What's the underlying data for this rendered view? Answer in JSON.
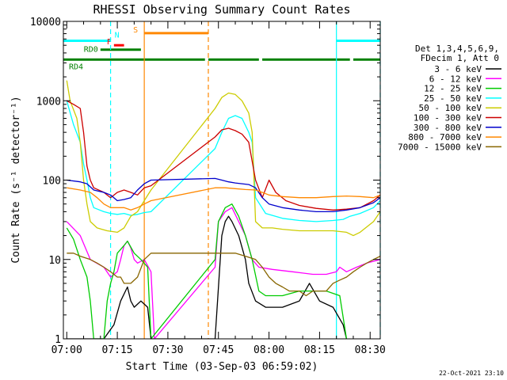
{
  "chart_data": {
    "type": "line",
    "title": "RHESSI Observing Summary Count Rates",
    "xlabel": "Start Time (03-Sep-03 06:59:02)",
    "ylabel": "Count Rate (s⁻¹ detector⁻¹)",
    "yscale": "log",
    "ylim": [
      1,
      10000
    ],
    "xlim_min": [
      0,
      94
    ],
    "x_ticks": [
      {
        "min": 1,
        "label": "07:00"
      },
      {
        "min": 16,
        "label": "07:15"
      },
      {
        "min": 31,
        "label": "07:30"
      },
      {
        "min": 46,
        "label": "07:45"
      },
      {
        "min": 61,
        "label": "08:00"
      },
      {
        "min": 76,
        "label": "08:15"
      },
      {
        "min": 91,
        "label": "08:30"
      }
    ],
    "y_ticks": [
      {
        "v": 1,
        "label": "1"
      },
      {
        "v": 10,
        "label": "10"
      },
      {
        "v": 100,
        "label": "100"
      },
      {
        "v": 1000,
        "label": "1000"
      },
      {
        "v": 10000,
        "label": "10000"
      }
    ],
    "legend_header": [
      "Det 1,3,4,5,6,9,",
      "FDecim 1, Att 0"
    ],
    "series": [
      {
        "name": "3 - 6 keV",
        "color": "#000000",
        "points": [
          [
            1,
            1
          ],
          [
            12,
            1
          ],
          [
            15,
            1.5
          ],
          [
            17,
            3
          ],
          [
            19,
            4.5
          ],
          [
            20,
            3
          ],
          [
            21,
            2.5
          ],
          [
            23,
            3
          ],
          [
            25,
            2.5
          ],
          [
            26,
            1
          ],
          [
            45,
            1
          ],
          [
            47,
            20
          ],
          [
            48,
            30
          ],
          [
            49,
            35
          ],
          [
            50,
            30
          ],
          [
            52,
            20
          ],
          [
            54,
            10
          ],
          [
            55,
            5
          ],
          [
            57,
            3
          ],
          [
            60,
            2.5
          ],
          [
            65,
            2.5
          ],
          [
            70,
            3
          ],
          [
            73,
            5
          ],
          [
            76,
            3
          ],
          [
            80,
            2.5
          ],
          [
            83,
            1.5
          ],
          [
            84,
            1
          ]
        ]
      },
      {
        "name": "6 - 12 keV",
        "color": "#ff00ff",
        "points": [
          [
            1,
            30
          ],
          [
            5,
            20
          ],
          [
            8,
            10
          ],
          [
            12,
            8
          ],
          [
            14,
            6
          ],
          [
            16,
            7
          ],
          [
            17,
            10
          ],
          [
            18,
            15
          ],
          [
            19,
            17
          ],
          [
            20,
            14
          ],
          [
            21,
            10
          ],
          [
            22,
            9
          ],
          [
            24,
            10
          ],
          [
            26,
            7
          ],
          [
            27,
            1
          ],
          [
            45,
            8
          ],
          [
            46,
            30
          ],
          [
            48,
            40
          ],
          [
            50,
            45
          ],
          [
            52,
            30
          ],
          [
            54,
            20
          ],
          [
            56,
            10
          ],
          [
            58,
            8
          ],
          [
            62,
            7.5
          ],
          [
            68,
            7
          ],
          [
            74,
            6.5
          ],
          [
            78,
            6.5
          ],
          [
            81,
            7
          ],
          [
            82,
            8
          ],
          [
            84,
            7
          ],
          [
            87,
            8
          ],
          [
            90,
            9
          ],
          [
            94,
            10
          ]
        ]
      },
      {
        "name": "12 - 25 keV",
        "color": "#00cc00",
        "points": [
          [
            1,
            25
          ],
          [
            3,
            18
          ],
          [
            5,
            10
          ],
          [
            7,
            6
          ],
          [
            8,
            3
          ],
          [
            9,
            1
          ],
          [
            12,
            1
          ],
          [
            13,
            3
          ],
          [
            14,
            5
          ],
          [
            15,
            7
          ],
          [
            16,
            12
          ],
          [
            18,
            15
          ],
          [
            19,
            17
          ],
          [
            21,
            12
          ],
          [
            23,
            10
          ],
          [
            25,
            8
          ],
          [
            26,
            1
          ],
          [
            45,
            10
          ],
          [
            46,
            30
          ],
          [
            48,
            45
          ],
          [
            50,
            50
          ],
          [
            52,
            35
          ],
          [
            54,
            20
          ],
          [
            56,
            10
          ],
          [
            58,
            4
          ],
          [
            60,
            3.5
          ],
          [
            65,
            3.5
          ],
          [
            70,
            4
          ],
          [
            74,
            4
          ],
          [
            78,
            4
          ],
          [
            82,
            3.5
          ],
          [
            84,
            1
          ]
        ]
      },
      {
        "name": "25 - 50 keV",
        "color": "#00ffff",
        "points": [
          [
            1,
            1000
          ],
          [
            3,
            500
          ],
          [
            5,
            300
          ],
          [
            6,
            160
          ],
          [
            7,
            100
          ],
          [
            8,
            60
          ],
          [
            9,
            45
          ],
          [
            12,
            40
          ],
          [
            14,
            38
          ],
          [
            16,
            37
          ],
          [
            18,
            38
          ],
          [
            20,
            36
          ],
          [
            22,
            37
          ],
          [
            24,
            39
          ],
          [
            26,
            40
          ],
          [
            45,
            250
          ],
          [
            47,
            400
          ],
          [
            49,
            600
          ],
          [
            51,
            650
          ],
          [
            53,
            600
          ],
          [
            55,
            400
          ],
          [
            56,
            300
          ],
          [
            57,
            60
          ],
          [
            60,
            38
          ],
          [
            65,
            33
          ],
          [
            70,
            31
          ],
          [
            75,
            30
          ],
          [
            80,
            31
          ],
          [
            83,
            32
          ],
          [
            85,
            35
          ],
          [
            88,
            38
          ],
          [
            92,
            45
          ],
          [
            94,
            55
          ]
        ]
      },
      {
        "name": "50 - 100 keV",
        "color": "#cccc00",
        "points": [
          [
            1,
            1800
          ],
          [
            2,
            1000
          ],
          [
            4,
            600
          ],
          [
            5,
            300
          ],
          [
            6,
            100
          ],
          [
            7,
            50
          ],
          [
            8,
            30
          ],
          [
            10,
            25
          ],
          [
            13,
            23
          ],
          [
            16,
            22
          ],
          [
            18,
            25
          ],
          [
            20,
            35
          ],
          [
            22,
            40
          ],
          [
            24,
            55
          ],
          [
            26,
            75
          ],
          [
            45,
            800
          ],
          [
            47,
            1100
          ],
          [
            49,
            1250
          ],
          [
            51,
            1200
          ],
          [
            53,
            1000
          ],
          [
            55,
            700
          ],
          [
            56,
            400
          ],
          [
            57,
            30
          ],
          [
            59,
            25
          ],
          [
            62,
            25
          ],
          [
            65,
            24
          ],
          [
            70,
            23
          ],
          [
            75,
            23
          ],
          [
            80,
            23
          ],
          [
            84,
            22
          ],
          [
            86,
            20
          ],
          [
            88,
            22
          ],
          [
            92,
            30
          ],
          [
            94,
            40
          ]
        ]
      },
      {
        "name": "100 - 300 keV",
        "color": "#cc0000",
        "points": [
          [
            1,
            1000
          ],
          [
            3,
            900
          ],
          [
            5,
            800
          ],
          [
            6,
            400
          ],
          [
            7,
            150
          ],
          [
            8,
            100
          ],
          [
            9,
            80
          ],
          [
            12,
            70
          ],
          [
            14,
            60
          ],
          [
            16,
            70
          ],
          [
            18,
            75
          ],
          [
            20,
            70
          ],
          [
            22,
            65
          ],
          [
            24,
            80
          ],
          [
            26,
            85
          ],
          [
            45,
            350
          ],
          [
            47,
            430
          ],
          [
            49,
            450
          ],
          [
            51,
            420
          ],
          [
            53,
            380
          ],
          [
            55,
            300
          ],
          [
            57,
            100
          ],
          [
            59,
            60
          ],
          [
            61,
            100
          ],
          [
            63,
            70
          ],
          [
            66,
            55
          ],
          [
            70,
            48
          ],
          [
            75,
            44
          ],
          [
            80,
            42
          ],
          [
            84,
            43
          ],
          [
            88,
            45
          ],
          [
            92,
            55
          ],
          [
            94,
            65
          ]
        ]
      },
      {
        "name": "300 - 800 keV",
        "color": "#0000cc",
        "points": [
          [
            1,
            100
          ],
          [
            5,
            95
          ],
          [
            7,
            90
          ],
          [
            9,
            75
          ],
          [
            12,
            70
          ],
          [
            14,
            65
          ],
          [
            16,
            55
          ],
          [
            18,
            57
          ],
          [
            20,
            60
          ],
          [
            22,
            75
          ],
          [
            24,
            90
          ],
          [
            26,
            100
          ],
          [
            45,
            105
          ],
          [
            47,
            100
          ],
          [
            49,
            95
          ],
          [
            51,
            92
          ],
          [
            53,
            90
          ],
          [
            55,
            88
          ],
          [
            57,
            80
          ],
          [
            59,
            60
          ],
          [
            61,
            50
          ],
          [
            65,
            45
          ],
          [
            70,
            42
          ],
          [
            75,
            40
          ],
          [
            80,
            40
          ],
          [
            84,
            42
          ],
          [
            88,
            45
          ],
          [
            92,
            52
          ],
          [
            94,
            60
          ]
        ]
      },
      {
        "name": "800 - 7000 keV",
        "color": "#ff8800",
        "points": [
          [
            1,
            80
          ],
          [
            5,
            75
          ],
          [
            8,
            70
          ],
          [
            10,
            60
          ],
          [
            12,
            50
          ],
          [
            14,
            45
          ],
          [
            16,
            45
          ],
          [
            18,
            45
          ],
          [
            20,
            42
          ],
          [
            22,
            45
          ],
          [
            24,
            50
          ],
          [
            26,
            55
          ],
          [
            45,
            80
          ],
          [
            48,
            80
          ],
          [
            51,
            78
          ],
          [
            54,
            76
          ],
          [
            57,
            75
          ],
          [
            59,
            70
          ],
          [
            61,
            65
          ],
          [
            65,
            62
          ],
          [
            70,
            60
          ],
          [
            75,
            60
          ],
          [
            80,
            62
          ],
          [
            84,
            63
          ],
          [
            88,
            62
          ],
          [
            92,
            60
          ],
          [
            94,
            65
          ]
        ]
      },
      {
        "name": "7000 - 15000 keV",
        "color": "#886600",
        "points": [
          [
            1,
            12
          ],
          [
            3,
            12
          ],
          [
            5,
            11
          ],
          [
            8,
            10
          ],
          [
            10,
            9
          ],
          [
            12,
            8
          ],
          [
            14,
            7
          ],
          [
            16,
            6
          ],
          [
            17,
            6
          ],
          [
            18,
            5
          ],
          [
            20,
            5
          ],
          [
            22,
            6
          ],
          [
            24,
            10
          ],
          [
            26,
            12
          ],
          [
            45,
            12
          ],
          [
            48,
            12
          ],
          [
            51,
            12
          ],
          [
            54,
            11
          ],
          [
            57,
            10
          ],
          [
            59,
            8
          ],
          [
            61,
            6
          ],
          [
            63,
            5
          ],
          [
            65,
            4.5
          ],
          [
            67,
            4
          ],
          [
            70,
            4
          ],
          [
            72,
            3.5
          ],
          [
            74,
            4
          ],
          [
            76,
            4
          ],
          [
            78,
            4
          ],
          [
            80,
            5
          ],
          [
            82,
            5.5
          ],
          [
            84,
            6
          ],
          [
            86,
            7
          ],
          [
            88,
            8
          ],
          [
            90,
            9
          ],
          [
            92,
            10
          ],
          [
            94,
            11
          ]
        ]
      }
    ],
    "flags": [
      {
        "name": "RD0",
        "label": "RD0",
        "color": "#008000",
        "v": 4400,
        "segments": [
          [
            11,
            23
          ]
        ]
      },
      {
        "name": "RD4",
        "label": "RD4",
        "color": "#008000",
        "v": 3300,
        "segments": [
          [
            0,
            42
          ],
          [
            43,
            58
          ],
          [
            59,
            85
          ],
          [
            86,
            94
          ]
        ]
      },
      {
        "name": "F",
        "label": "F",
        "color": "#ff0000",
        "v": 5000,
        "segments": [
          [
            15,
            18
          ]
        ]
      },
      {
        "name": "N",
        "label": "N",
        "color": "#00ffff",
        "v": 5700,
        "segments": [
          [
            0,
            14
          ],
          [
            81,
            94
          ]
        ]
      },
      {
        "name": "S",
        "label": "S",
        "color": "#ff8800",
        "v": 7100,
        "segments": [
          [
            24,
            43
          ]
        ]
      }
    ],
    "vlines": [
      {
        "name": "N-start",
        "min": 14,
        "color": "#00ffff",
        "style": "dashed"
      },
      {
        "name": "saa-start",
        "min": 24,
        "color": "#ff8800",
        "style": "solid"
      },
      {
        "name": "saa-end",
        "min": 43,
        "color": "#ff8800",
        "style": "dashed"
      },
      {
        "name": "N-end",
        "min": 81,
        "color": "#00ffff",
        "style": "solid"
      },
      {
        "name": "end-dash",
        "min": 94,
        "color": "#00ffff",
        "style": "dashed"
      }
    ],
    "timestamp": "22-Oct-2021 23:10"
  }
}
